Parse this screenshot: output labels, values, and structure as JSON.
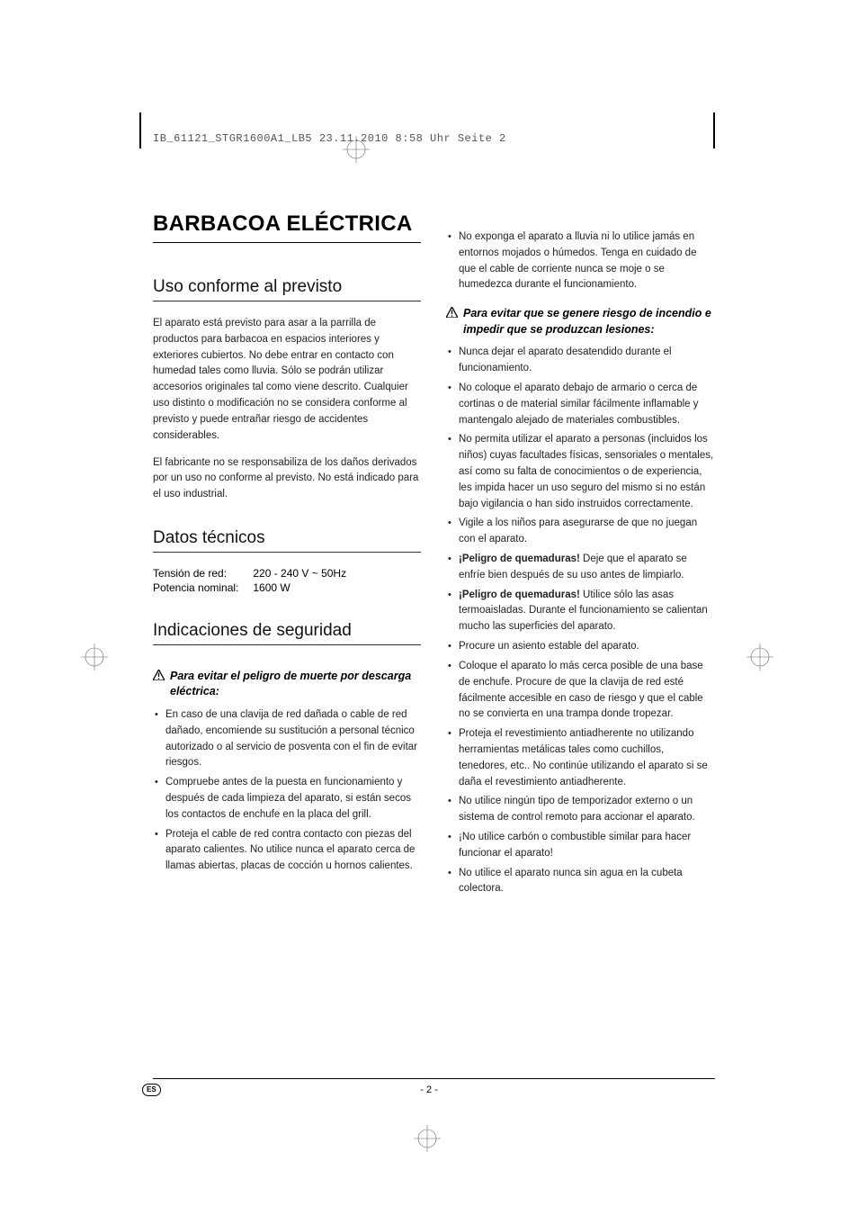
{
  "header": {
    "imprint_line": "IB_61121_STGR1600A1_LB5  23.11.2010  8:58 Uhr  Seite 2"
  },
  "colors": {
    "page_bg": "#9a9a9a",
    "paper": "#ffffff",
    "text": "#222222",
    "rule": "#000000",
    "crop_mark": "#000000",
    "registration_stroke": "#666666"
  },
  "typography": {
    "body_font": "Helvetica Neue, Arial, sans-serif",
    "mono_font": "Courier New, monospace",
    "title_size_pt": 24,
    "section_size_pt": 19,
    "body_size_pt": 11.5,
    "warn_heading_size_pt": 12.5
  },
  "title": "BARBACOA ELÉCTRICA",
  "sections": {
    "uso": {
      "heading": "Uso conforme al previsto",
      "p1": "El aparato está previsto para asar a la parrilla de productos para barbacoa en espacios interiores y exteriores cubiertos. No debe entrar en contacto con humedad tales como lluvia. Sólo se podrán utilizar accesorios originales tal como viene descrito. Cualquier uso distinto o modificación no se considera conforme al previsto y puede entrañar riesgo de accidentes considerables.",
      "p2": "El fabricante no se responsabiliza de los daños derivados por un uso no conforme al previsto. No está indicado para el uso industrial."
    },
    "datos": {
      "heading": "Datos técnicos",
      "rows": [
        {
          "label": "Tensión de red:",
          "value": "220 - 240 V ~ 50Hz"
        },
        {
          "label": "Potencia nominal:",
          "value": "1600 W"
        }
      ]
    },
    "seguridad": {
      "heading": "Indicaciones de seguridad",
      "warn1": {
        "title": "Para evitar el peligro de muerte por descarga eléctrica:",
        "items": [
          "En caso de una clavija de red dañada o cable de red dañado, encomiende su sustitución a personal técnico autorizado o al servicio de posventa con el fin de evitar riesgos.",
          "Compruebe antes de la puesta en funcionamiento y después de cada limpieza del aparato, si están secos los contactos de enchufe en la placa del grill.",
          "Proteja el cable de red contra contacto con piezas del aparato calientes. No utilice nunca el aparato cerca de llamas abiertas, placas de cocción u hornos calientes."
        ]
      },
      "warn1_cont": [
        "No exponga el aparato a lluvia ni lo utilice jamás en entornos mojados o húmedos. Tenga en cuidado de que el cable de corriente nunca se moje o se humedezca durante el funcionamiento."
      ],
      "warn2": {
        "title": "Para evitar que se genere riesgo de incendio e impedir que se produzcan lesiones:",
        "items": [
          "Nunca dejar el aparato desatendido durante el funcionamiento.",
          "No coloque el aparato debajo de armario o cerca de cortinas o de material similar fácilmente inflamable y mantengalo alejado de materiales combustibles.",
          "No permita utilizar el aparato a personas (incluidos los niños) cuyas facultades físicas, sensoriales o mentales, así como su falta de conocimientos o de experiencia, les impida hacer un uso seguro del mismo si no están bajo vigilancia o han sido instruidos correctamente.",
          "Vigile a los niños para asegurarse de que no juegan con el aparato.",
          "<b>¡Peligro de quemaduras!</b> Deje que el aparato se enfríe bien después de su uso antes de limpiarlo.",
          "<b>¡Peligro de quemaduras!</b> Utilice sólo las asas termoaisladas. Durante el funcionamiento se calientan mucho las superficies del aparato.",
          "Procure un asiento estable del aparato.",
          "Coloque el aparato lo más cerca posible de una base de enchufe. Procure de que la clavija de red esté fácilmente accesible en caso de riesgo y que el cable no se convierta en una trampa donde tropezar.",
          "Proteja el revestimiento antiadherente no utilizando herramientas metálicas tales como cuchillos, tenedores, etc.. No continúe utilizando el aparato si se daña el revestimiento antiadherente.",
          "No utilice ningún tipo de temporizador externo o un sistema de control remoto para accionar el aparato.",
          "¡No utilice carbón o combustible similar para hacer funcionar el aparato!",
          "No utilice el aparato nunca sin agua en la cubeta colectora."
        ]
      }
    }
  },
  "footer": {
    "lang_code": "ES",
    "page_number": "- 2 -"
  }
}
